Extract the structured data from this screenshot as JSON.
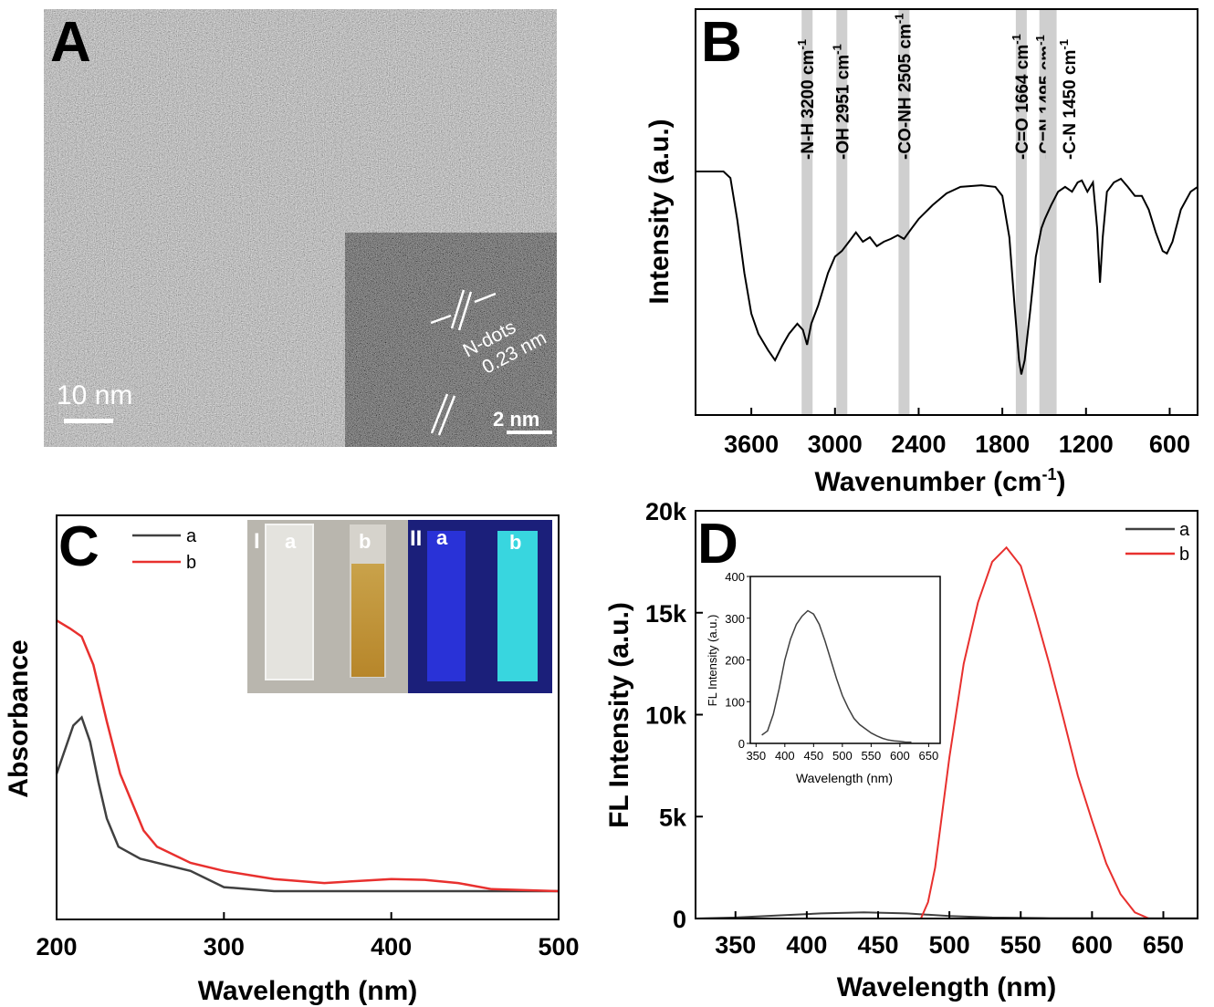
{
  "panels": {
    "a": "A",
    "b": "B",
    "c": "C",
    "d": "D"
  },
  "panel_a": {
    "scale_main": "10 nm",
    "scale_inset": "2 nm",
    "inset_label_1": "N-dots",
    "inset_label_2": "0.23 nm"
  },
  "panel_c_photo": {
    "group_1": "I",
    "group_2": "II",
    "label_a": "a",
    "label_b": "b"
  },
  "colors": {
    "a": "#404040",
    "b": "#e8302e",
    "band": "#cfcfcf"
  },
  "chart_data": [
    {
      "type": "line",
      "panel": "B",
      "xlabel": "Wavenumber (cm",
      "xlabel_sup": "-1",
      "xlabel_end": ")",
      "ylabel": "Intensity (a.u.)",
      "xlim": [
        4000,
        400
      ],
      "ylim": [
        0,
        100
      ],
      "x_reversed": true,
      "xticks": [
        3600,
        3000,
        2400,
        1800,
        1200,
        600
      ],
      "bands": [
        {
          "x": 3200,
          "label": "-N-H 3200 cm",
          "sup": "-1"
        },
        {
          "x": 2951,
          "label": "-OH 2951 cm",
          "sup": "-1"
        },
        {
          "x": 2505,
          "label": "-CO-NH 2505 cm",
          "sup": "-1"
        },
        {
          "x": 1664,
          "label": "-C=O 1664 cm",
          "sup": "-1"
        },
        {
          "x": 1495,
          "label": "-C=N 1495 cm",
          "sup": "-1"
        },
        {
          "x": 1450,
          "label": "-C-N 1450 cm",
          "sup": "-1"
        }
      ],
      "series": [
        {
          "points": [
            [
              4000,
              60
            ],
            [
              3800,
              60
            ],
            [
              3750,
              58.4
            ],
            [
              3700,
              48
            ],
            [
              3650,
              35
            ],
            [
              3600,
              25
            ],
            [
              3550,
              20
            ],
            [
              3480,
              16
            ],
            [
              3430,
              13.5
            ],
            [
              3380,
              17
            ],
            [
              3330,
              20
            ],
            [
              3270,
              22.5
            ],
            [
              3230,
              21
            ],
            [
              3200,
              17.3
            ],
            [
              3170,
              22.5
            ],
            [
              3120,
              27
            ],
            [
              3050,
              35
            ],
            [
              3000,
              39
            ],
            [
              2951,
              40.4
            ],
            [
              2900,
              42.7
            ],
            [
              2850,
              45
            ],
            [
              2800,
              42.7
            ],
            [
              2750,
              43.8
            ],
            [
              2700,
              41.6
            ],
            [
              2650,
              42.7
            ],
            [
              2600,
              43.4
            ],
            [
              2550,
              44.3
            ],
            [
              2505,
              43.4
            ],
            [
              2450,
              46
            ],
            [
              2400,
              48.3
            ],
            [
              2300,
              51.7
            ],
            [
              2200,
              54.6
            ],
            [
              2100,
              56.2
            ],
            [
              1950,
              56.6
            ],
            [
              1850,
              56.2
            ],
            [
              1800,
              54
            ],
            [
              1750,
              43.8
            ],
            [
              1710,
              25.8
            ],
            [
              1680,
              13.5
            ],
            [
              1664,
              10
            ],
            [
              1640,
              13.5
            ],
            [
              1600,
              25.8
            ],
            [
              1560,
              39
            ],
            [
              1520,
              46
            ],
            [
              1495,
              48.3
            ],
            [
              1450,
              51.7
            ],
            [
              1400,
              55
            ],
            [
              1350,
              56.2
            ],
            [
              1300,
              55
            ],
            [
              1260,
              57.3
            ],
            [
              1230,
              57.8
            ],
            [
              1190,
              55
            ],
            [
              1150,
              57.3
            ],
            [
              1120,
              46
            ],
            [
              1100,
              32.6
            ],
            [
              1080,
              43.8
            ],
            [
              1050,
              55
            ],
            [
              1000,
              57.3
            ],
            [
              950,
              58.2
            ],
            [
              900,
              56.2
            ],
            [
              850,
              54
            ],
            [
              800,
              54
            ],
            [
              750,
              50.6
            ],
            [
              700,
              45
            ],
            [
              650,
              40.4
            ],
            [
              620,
              39.8
            ],
            [
              580,
              42.7
            ],
            [
              520,
              50.6
            ],
            [
              450,
              55
            ],
            [
              400,
              56.2
            ]
          ]
        }
      ]
    },
    {
      "type": "line",
      "panel": "C",
      "xlabel": "Wavelength (nm)",
      "ylabel": "Absorbance",
      "xlim": [
        200,
        500
      ],
      "ylim": [
        0,
        1
      ],
      "xticks": [
        200,
        300,
        400,
        500
      ],
      "legend": "top-left",
      "series": [
        {
          "name": "a",
          "color": "#404040",
          "points": [
            [
              200,
              0.36
            ],
            [
              205,
              0.42
            ],
            [
              210,
              0.48
            ],
            [
              215,
              0.5
            ],
            [
              220,
              0.44
            ],
            [
              225,
              0.34
            ],
            [
              230,
              0.25
            ],
            [
              237,
              0.18
            ],
            [
              250,
              0.15
            ],
            [
              280,
              0.12
            ],
            [
              300,
              0.08
            ],
            [
              330,
              0.07
            ],
            [
              500,
              0.07
            ]
          ]
        },
        {
          "name": "b",
          "color": "#e8302e",
          "points": [
            [
              200,
              0.74
            ],
            [
              208,
              0.72
            ],
            [
              215,
              0.7
            ],
            [
              222,
              0.63
            ],
            [
              230,
              0.49
            ],
            [
              238,
              0.36
            ],
            [
              245,
              0.29
            ],
            [
              252,
              0.22
            ],
            [
              260,
              0.18
            ],
            [
              280,
              0.14
            ],
            [
              300,
              0.12
            ],
            [
              330,
              0.1
            ],
            [
              360,
              0.09
            ],
            [
              380,
              0.095
            ],
            [
              400,
              0.1
            ],
            [
              420,
              0.098
            ],
            [
              440,
              0.09
            ],
            [
              460,
              0.075
            ],
            [
              500,
              0.07
            ]
          ]
        }
      ]
    },
    {
      "type": "line",
      "panel": "D",
      "xlabel": "Wavelength (nm)",
      "ylabel": "FL Intensity (a.u.)",
      "xlim": [
        322,
        674
      ],
      "ylim": [
        0,
        20000
      ],
      "xticks": [
        350,
        400,
        450,
        500,
        550,
        600,
        650
      ],
      "yticks": [
        0,
        5000,
        10000,
        15000,
        20000
      ],
      "yticklabels": [
        "0",
        "5k",
        "10k",
        "15k",
        "20k"
      ],
      "legend": "top-right",
      "series": [
        {
          "name": "a",
          "color": "#404040",
          "points": [
            [
              322,
              0
            ],
            [
              350,
              50
            ],
            [
              380,
              150
            ],
            [
              410,
              250
            ],
            [
              440,
              300
            ],
            [
              470,
              250
            ],
            [
              500,
              120
            ],
            [
              530,
              50
            ],
            [
              570,
              20
            ],
            [
              674,
              10
            ]
          ]
        },
        {
          "name": "b",
          "color": "#e8302e",
          "points": [
            [
              322,
              0
            ],
            [
              480,
              0
            ],
            [
              485,
              800
            ],
            [
              490,
              2500
            ],
            [
              500,
              7900
            ],
            [
              510,
              12500
            ],
            [
              520,
              15500
            ],
            [
              530,
              17500
            ],
            [
              540,
              18200
            ],
            [
              550,
              17300
            ],
            [
              560,
              15000
            ],
            [
              570,
              12500
            ],
            [
              580,
              9800
            ],
            [
              590,
              7000
            ],
            [
              600,
              4800
            ],
            [
              610,
              2700
            ],
            [
              620,
              1200
            ],
            [
              630,
              300
            ],
            [
              640,
              0
            ],
            [
              674,
              0
            ]
          ]
        }
      ],
      "inset": {
        "xlabel": "Wavelength (nm)",
        "ylabel": "FL Intensity (a.u.)",
        "xlim": [
          340,
          670
        ],
        "ylim": [
          0,
          400
        ],
        "xticks": [
          350,
          400,
          450,
          500,
          550,
          600,
          650
        ],
        "yticks": [
          0,
          100,
          200,
          300,
          400
        ],
        "points": [
          [
            360,
            20
          ],
          [
            370,
            30
          ],
          [
            380,
            70
          ],
          [
            390,
            130
          ],
          [
            400,
            200
          ],
          [
            410,
            250
          ],
          [
            420,
            285
          ],
          [
            430,
            305
          ],
          [
            440,
            318
          ],
          [
            450,
            310
          ],
          [
            460,
            285
          ],
          [
            470,
            245
          ],
          [
            480,
            200
          ],
          [
            490,
            155
          ],
          [
            500,
            115
          ],
          [
            510,
            85
          ],
          [
            520,
            60
          ],
          [
            530,
            45
          ],
          [
            540,
            35
          ],
          [
            550,
            25
          ],
          [
            560,
            18
          ],
          [
            570,
            12
          ],
          [
            580,
            8
          ],
          [
            590,
            6
          ],
          [
            600,
            5
          ],
          [
            610,
            3
          ],
          [
            620,
            3
          ]
        ]
      }
    }
  ]
}
